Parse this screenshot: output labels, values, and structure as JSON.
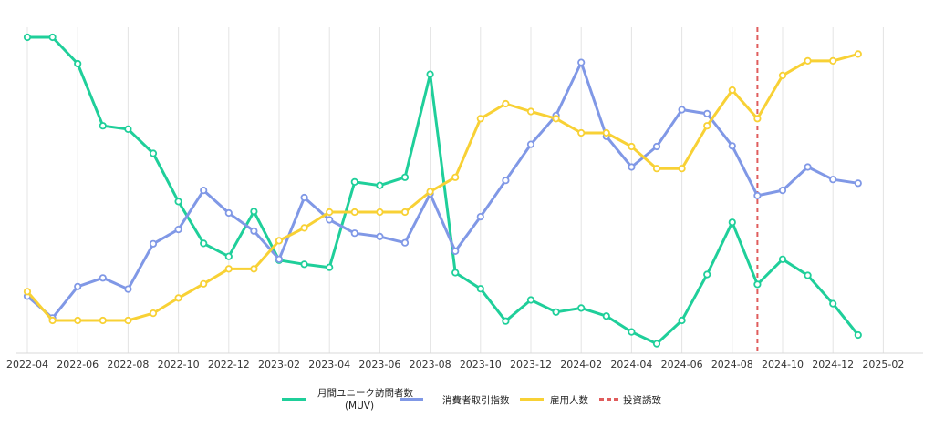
{
  "chart_data": {
    "type": "line",
    "x": [
      "2022-04",
      "2022-05",
      "2022-06",
      "2022-07",
      "2022-08",
      "2022-09",
      "2022-10",
      "2022-11",
      "2022-12",
      "2023-01",
      "2023-02",
      "2023-03",
      "2023-04",
      "2023-05",
      "2023-06",
      "2023-07",
      "2023-08",
      "2023-09",
      "2023-10",
      "2023-11",
      "2023-12",
      "2024-01",
      "2024-02",
      "2024-03",
      "2024-04",
      "2024-05",
      "2024-06",
      "2024-07",
      "2024-08",
      "2024-09",
      "2024-10",
      "2024-11",
      "2024-12",
      "2025-01"
    ],
    "x_tick_labels": [
      "2022-04",
      "2022-06",
      "2022-08",
      "2022-10",
      "2022-12",
      "2023-02",
      "2023-04",
      "2023-06",
      "2023-08",
      "2023-10",
      "2023-12",
      "2024-02",
      "2024-04",
      "2024-06",
      "2024-08",
      "2024-10",
      "2024-12",
      "2025-02"
    ],
    "y_range": [
      0,
      100
    ],
    "grid_vertical": true,
    "legend_position": "bottom-center",
    "series": [
      {
        "name": "月間ユニーク訪問者数",
        "name_line2": "(MUV)",
        "color": "#1fcf9a",
        "values": [
          100.0,
          100.0,
          91.5,
          71.5,
          70.4,
          62.6,
          47.1,
          33.6,
          29.4,
          43.9,
          28.2,
          26.9,
          25.9,
          53.4,
          52.3,
          54.9,
          88.1,
          24.2,
          19.0,
          8.6,
          15.4,
          11.5,
          12.8,
          10.2,
          5.1,
          1.3,
          8.8,
          23.6,
          40.4,
          20.4,
          28.5,
          23.3,
          14.2,
          4.1
        ]
      },
      {
        "name": "消費者取引指数",
        "color": "#8098e6",
        "values": [
          16.6,
          9.6,
          19.7,
          22.5,
          18.9,
          33.5,
          38.1,
          50.7,
          43.4,
          37.6,
          28.5,
          48.4,
          41.2,
          36.9,
          35.8,
          33.8,
          49.6,
          31.1,
          42.2,
          53.9,
          65.5,
          74.8,
          91.9,
          68.1,
          58.2,
          64.8,
          76.7,
          75.4,
          65.0,
          49.0,
          50.7,
          58.2,
          54.2,
          53.0
        ]
      },
      {
        "name": "雇用人数",
        "color": "#f8d135",
        "values": [
          18.1,
          8.8,
          8.8,
          8.8,
          8.8,
          11.1,
          16.0,
          20.6,
          25.4,
          25.4,
          34.5,
          38.6,
          43.7,
          43.7,
          43.7,
          43.7,
          50.3,
          54.9,
          73.8,
          78.6,
          76.1,
          73.8,
          69.2,
          69.2,
          64.8,
          57.7,
          57.7,
          71.5,
          83.0,
          73.8,
          87.7,
          92.4,
          92.4,
          94.6
        ]
      }
    ],
    "marker": {
      "name": "投資誘致",
      "x": "2024-09",
      "color": "#e05c5c",
      "style": "dashed"
    }
  }
}
